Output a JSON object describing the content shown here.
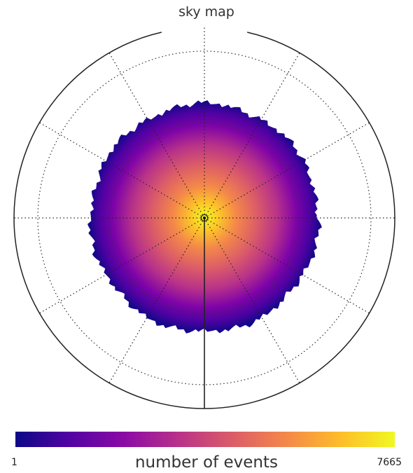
{
  "chart_data": {
    "type": "heatmap",
    "projection": "polar",
    "title": "sky map",
    "center_value": 7665,
    "edge_value": 1,
    "colorbar": {
      "label": "number of events",
      "min": 1,
      "max": 7665,
      "colormap": "plasma",
      "colors": [
        "#0d0887",
        "#5302a3",
        "#8b0aa5",
        "#b83289",
        "#db5c68",
        "#f48849",
        "#febd2a",
        "#f0f921"
      ]
    },
    "grid": true,
    "radial_grid_lines": 12
  }
}
